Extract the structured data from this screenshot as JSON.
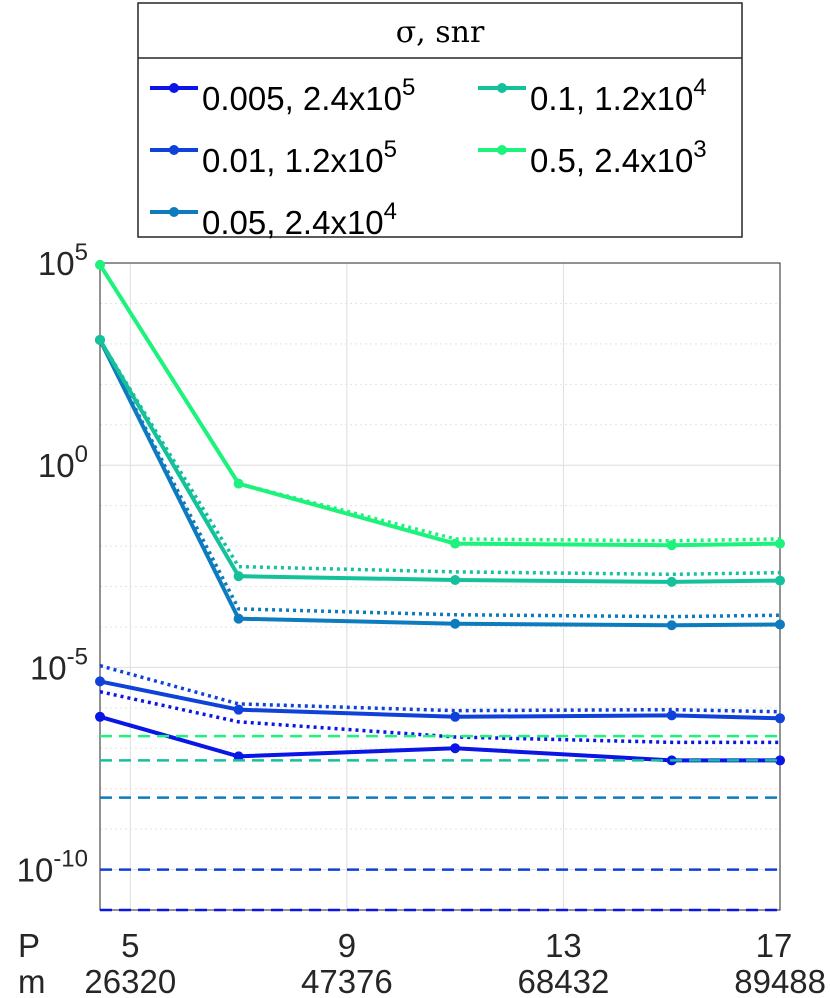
{
  "chart_data": {
    "type": "line",
    "yscale": "log",
    "ylim": [
      1e-11,
      100000.0
    ],
    "y_ticks": [
      {
        "value": 100000.0,
        "base": "10",
        "exp": "5"
      },
      {
        "value": 1,
        "base": "10",
        "exp": "0"
      },
      {
        "value": 1e-05,
        "base": "10",
        "exp": "-5"
      },
      {
        "value": 1e-10,
        "base": "10",
        "exp": "-10"
      }
    ],
    "x_ticks": [
      {
        "index": 1,
        "P": "5",
        "m": "26320"
      },
      {
        "index": 3,
        "P": "9",
        "m": "47376"
      },
      {
        "index": 5,
        "P": "13",
        "m": "68432"
      },
      {
        "index": 7,
        "P": "17",
        "m": "89488"
      }
    ],
    "x_row_labels": {
      "P": "P",
      "m": "m"
    },
    "xlim": [
      0.72,
      7
    ],
    "x": [
      0.72,
      2,
      4,
      6,
      7
    ],
    "grid": true,
    "legend": {
      "title": "σ, snr",
      "placement": "top",
      "columns": 2
    },
    "series": [
      {
        "label": "0.005, 2.4x10",
        "label_exp": "5",
        "color": "#0a15e6",
        "values": [
          6e-07,
          6.3e-08,
          1e-07,
          5e-08,
          5e-08
        ],
        "dotted": [
          2.5e-06,
          4.5e-07,
          1.9e-07,
          1.4e-07,
          1.4e-07
        ],
        "floor": 1e-11
      },
      {
        "label": "0.01, 1.2x10",
        "label_exp": "5",
        "color": "#0f42d8",
        "values": [
          4.5e-06,
          9e-07,
          6e-07,
          6.5e-07,
          5.5e-07
        ],
        "dotted": [
          1.1e-05,
          1.25e-06,
          8.5e-07,
          9e-07,
          8e-07
        ],
        "floor": 1e-10
      },
      {
        "label": "0.05, 2.4x10",
        "label_exp": "4",
        "color": "#0f7bbf",
        "values": [
          1250.0,
          0.00016,
          0.00012,
          0.00011,
          0.000115
        ],
        "dotted": [
          1250.0,
          0.00028,
          0.0002,
          0.00018,
          0.000195
        ],
        "floor": 6e-09
      },
      {
        "label": "0.1, 1.2x10",
        "label_exp": "4",
        "color": "#14c19a",
        "values": [
          1250.0,
          0.0018,
          0.00145,
          0.0013,
          0.0014
        ],
        "dotted": [
          1250.0,
          0.0031,
          0.0023,
          0.002,
          0.0022
        ],
        "floor": 5e-08
      },
      {
        "label": "0.5, 2.4x10",
        "label_exp": "3",
        "color": "#1df27c",
        "values": [
          90000.0,
          0.35,
          0.0115,
          0.0105,
          0.0115
        ],
        "dotted": [
          90000.0,
          0.35,
          0.015,
          0.0135,
          0.015
        ],
        "floor": 2e-07
      }
    ]
  }
}
